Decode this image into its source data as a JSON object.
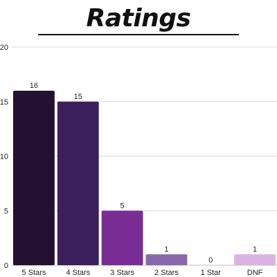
{
  "chart_data": {
    "type": "bar",
    "title": "Ratings",
    "categories": [
      "5 Stars",
      "4 Stars",
      "3 Stars",
      "2 Stars",
      "1 Star",
      "DNF"
    ],
    "values": [
      16,
      15,
      5,
      1,
      0,
      1
    ],
    "data_labels": [
      "16",
      "15",
      "5",
      "1",
      "0",
      "1"
    ],
    "bar_colors": [
      "#241031",
      "#3b1f5c",
      "#7b2d96",
      "#8a68ad",
      "#c9a4da",
      "#d9b3e3"
    ],
    "ylim": [
      0,
      20
    ],
    "y_ticks": [
      0,
      5,
      10,
      15,
      20
    ],
    "xlabel": "",
    "ylabel": "",
    "grid": true,
    "legend": "none"
  }
}
